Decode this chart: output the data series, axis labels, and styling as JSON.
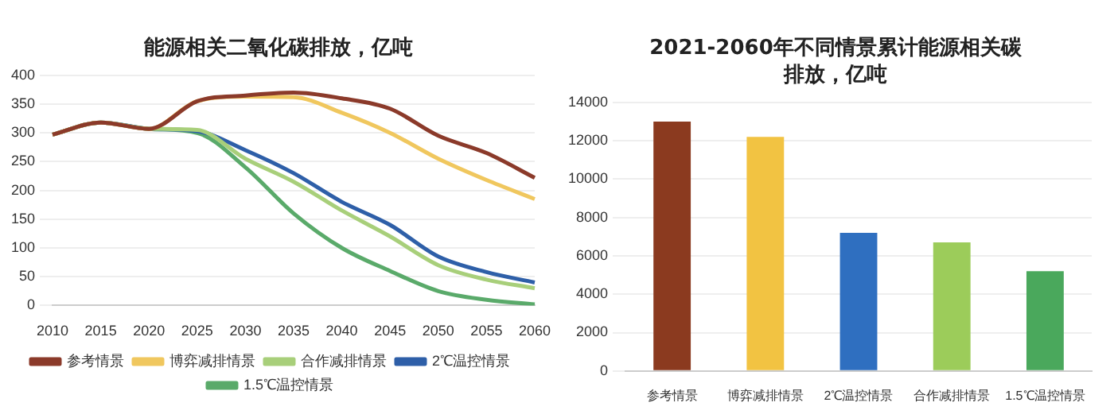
{
  "chart_data": [
    {
      "type": "line",
      "title": "能源相关二氧化碳排放，亿吨",
      "categories": [
        "2010",
        "2015",
        "2020",
        "2025",
        "2030",
        "2035",
        "2040",
        "2045",
        "2050",
        "2055",
        "2060"
      ],
      "series": [
        {
          "name": "参考情景",
          "color": "#8b3a2a",
          "values": [
            297,
            318,
            307,
            355,
            365,
            370,
            360,
            342,
            295,
            265,
            222
          ]
        },
        {
          "name": "博弈减排情景",
          "color": "#f0c75e",
          "values": [
            297,
            318,
            307,
            355,
            363,
            362,
            335,
            300,
            255,
            218,
            185
          ]
        },
        {
          "name": "合作减排情景",
          "color": "#a8cf7a",
          "values": [
            297,
            318,
            307,
            305,
            255,
            215,
            165,
            120,
            70,
            45,
            30
          ]
        },
        {
          "name": "2℃温控情景",
          "color": "#2e5fa8",
          "values": [
            297,
            318,
            307,
            303,
            270,
            230,
            180,
            140,
            85,
            58,
            40
          ]
        },
        {
          "name": "1.5℃温控情景",
          "color": "#5aaa6a",
          "values": [
            297,
            318,
            307,
            300,
            240,
            160,
            100,
            60,
            25,
            10,
            2
          ]
        }
      ],
      "ylim": [
        0,
        400
      ],
      "yticks": [
        0,
        50,
        100,
        150,
        200,
        250,
        300,
        350,
        400
      ],
      "grid": "y",
      "legend": "bottom",
      "marker": "none"
    },
    {
      "type": "bar",
      "title": "2021-2060年不同情景累计能源相关碳排放，亿吨",
      "categories": [
        "参考情景",
        "博弈减排情景",
        "2℃温控情景",
        "合作减排情景",
        "1.5℃温控情景"
      ],
      "values": [
        13000,
        12200,
        7200,
        6700,
        5200
      ],
      "colors": [
        "#8b3a1f",
        "#f2c342",
        "#2f6fc0",
        "#9ccc5a",
        "#4aa85c"
      ],
      "ylim": [
        0,
        14000
      ],
      "yticks": [
        0,
        2000,
        4000,
        6000,
        8000,
        10000,
        12000,
        14000
      ],
      "grid": "y"
    }
  ]
}
